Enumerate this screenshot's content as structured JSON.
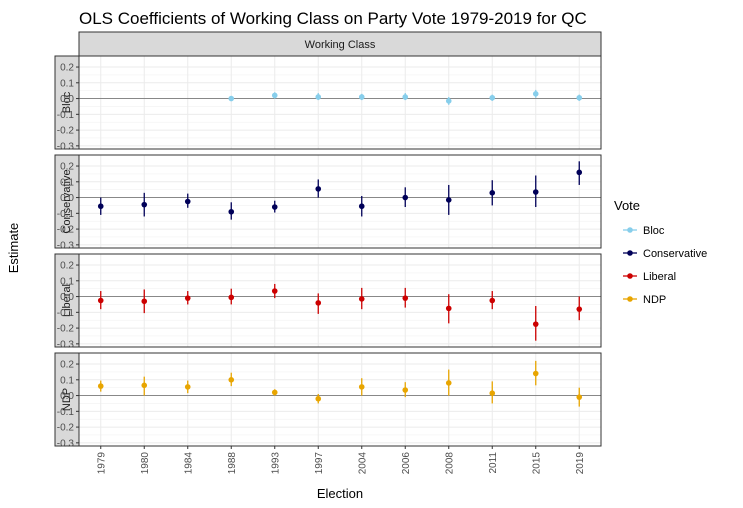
{
  "chart_data": {
    "type": "scatter",
    "title": "OLS Coefficients of Working Class on Party Vote 1979-2019 for QC",
    "facet_column_label": "Working Class",
    "xlabel": "Election",
    "ylabel": "Estimate",
    "ylim": [
      -0.32,
      0.27
    ],
    "yticks": [
      0.2,
      0.1,
      0.0,
      -0.1,
      -0.2,
      -0.3
    ],
    "ytick_labels": [
      "0.2",
      "0.1",
      "0.0",
      "-0.1",
      "-0.2",
      "-0.3"
    ],
    "categories": [
      "1979",
      "1980",
      "1984",
      "1988",
      "1993",
      "1997",
      "2004",
      "2006",
      "2008",
      "2011",
      "2015",
      "2019"
    ],
    "grid": true,
    "legend_title": "Vote",
    "legend_position": "right",
    "series": [
      {
        "name": "Bloc",
        "color": "#87CEEB",
        "estimates": [
          null,
          null,
          null,
          0.0,
          0.02,
          0.01,
          0.01,
          0.01,
          -0.015,
          0.005,
          0.03,
          0.005
        ],
        "lower": [
          null,
          null,
          null,
          -0.01,
          0.0,
          -0.01,
          -0.01,
          -0.01,
          -0.04,
          -0.015,
          0.005,
          -0.015
        ],
        "upper": [
          null,
          null,
          null,
          0.01,
          0.04,
          0.035,
          0.03,
          0.035,
          0.01,
          0.025,
          0.055,
          0.025
        ]
      },
      {
        "name": "Conservative",
        "color": "#000058",
        "estimates": [
          -0.055,
          -0.045,
          -0.025,
          -0.09,
          -0.06,
          0.055,
          -0.055,
          0.0,
          -0.015,
          0.03,
          0.035,
          0.16
        ],
        "lower": [
          -0.11,
          -0.12,
          -0.065,
          -0.14,
          -0.095,
          0.0,
          -0.12,
          -0.06,
          -0.11,
          -0.05,
          -0.06,
          0.08
        ],
        "upper": [
          0.0,
          0.03,
          0.025,
          -0.03,
          -0.02,
          0.115,
          0.01,
          0.065,
          0.08,
          0.11,
          0.14,
          0.23
        ]
      },
      {
        "name": "Liberal",
        "color": "#CC0000",
        "estimates": [
          -0.025,
          -0.03,
          -0.01,
          -0.005,
          0.035,
          -0.04,
          -0.015,
          -0.01,
          -0.075,
          -0.025,
          -0.175,
          -0.08
        ],
        "lower": [
          -0.08,
          -0.105,
          -0.05,
          -0.05,
          -0.01,
          -0.11,
          -0.08,
          -0.07,
          -0.17,
          -0.08,
          -0.28,
          -0.15
        ],
        "upper": [
          0.035,
          0.045,
          0.035,
          0.05,
          0.08,
          0.02,
          0.055,
          0.055,
          0.015,
          0.035,
          -0.06,
          0.0
        ]
      },
      {
        "name": "NDP",
        "color": "#E8A500",
        "estimates": [
          0.06,
          0.065,
          0.055,
          0.1,
          0.02,
          -0.02,
          0.055,
          0.035,
          0.08,
          0.015,
          0.14,
          -0.01
        ],
        "lower": [
          0.025,
          0.0,
          0.015,
          0.06,
          0.0,
          -0.05,
          0.0,
          -0.01,
          0.0,
          -0.05,
          0.065,
          -0.07
        ],
        "upper": [
          0.095,
          0.12,
          0.095,
          0.145,
          0.04,
          0.01,
          0.11,
          0.085,
          0.165,
          0.09,
          0.22,
          0.05
        ]
      }
    ]
  }
}
